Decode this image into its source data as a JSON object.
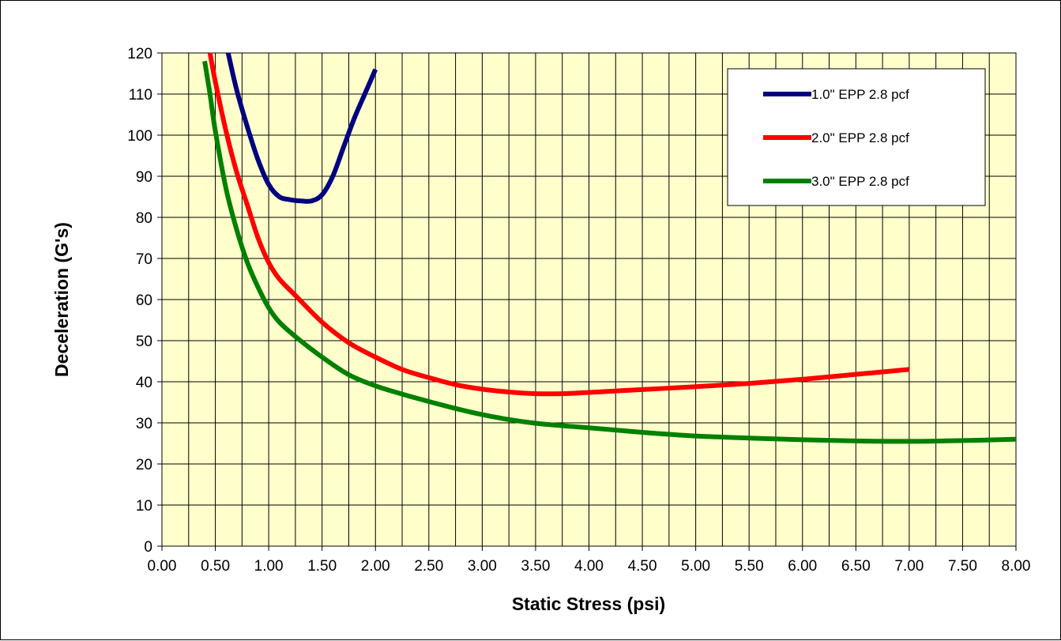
{
  "chart_data": {
    "type": "line",
    "title": "",
    "xlabel": "Static Stress (psi)",
    "ylabel": "Deceleration (G's)",
    "xlim": [
      0,
      8
    ],
    "ylim": [
      0,
      120
    ],
    "x_ticks": [
      "0.00",
      "0.50",
      "1.00",
      "1.50",
      "2.00",
      "2.50",
      "3.00",
      "3.50",
      "4.00",
      "4.50",
      "5.00",
      "5.50",
      "6.00",
      "6.50",
      "7.00",
      "7.50",
      "8.00"
    ],
    "y_ticks": [
      "0",
      "10",
      "20",
      "30",
      "40",
      "50",
      "60",
      "70",
      "80",
      "90",
      "100",
      "110",
      "120"
    ],
    "x_tick_values": [
      0,
      0.5,
      1,
      1.5,
      2,
      2.5,
      3,
      3.5,
      4,
      4.5,
      5,
      5.5,
      6,
      6.5,
      7,
      7.5,
      8
    ],
    "y_tick_values": [
      0,
      10,
      20,
      30,
      40,
      50,
      60,
      70,
      80,
      90,
      100,
      110,
      120
    ],
    "x_minor_step": 0.25,
    "grid": true,
    "legend_position": "top-right",
    "plot_background": "#FFFFCC",
    "series": [
      {
        "name": "1.0\" EPP 2.8 pcf",
        "color": "#000080",
        "x": [
          0.62,
          0.7,
          0.8,
          0.9,
          1.0,
          1.1,
          1.2,
          1.3,
          1.4,
          1.5,
          1.6,
          1.7,
          1.8,
          1.9,
          2.0
        ],
        "y": [
          120,
          111,
          102,
          94,
          88,
          85,
          84.3,
          84,
          84,
          85.5,
          90,
          97,
          104,
          110,
          116
        ]
      },
      {
        "name": "2.0\" EPP 2.8 pcf",
        "color": "#FF0000",
        "x": [
          0.45,
          0.5,
          0.6,
          0.7,
          0.8,
          0.9,
          1.0,
          1.1,
          1.25,
          1.5,
          1.75,
          2.0,
          2.25,
          2.5,
          2.75,
          3.0,
          3.25,
          3.5,
          3.75,
          4.0,
          4.5,
          5.0,
          5.5,
          6.0,
          6.5,
          7.0
        ],
        "y": [
          120,
          113,
          101,
          91,
          83,
          75,
          69,
          65,
          61,
          54.5,
          49.5,
          46,
          43,
          41,
          39.3,
          38.2,
          37.5,
          37.1,
          37.1,
          37.4,
          38.1,
          38.8,
          39.6,
          40.6,
          41.8,
          43
        ]
      },
      {
        "name": "3.0\" EPP 2.8 pcf",
        "color": "#008000",
        "x": [
          0.4,
          0.45,
          0.5,
          0.6,
          0.7,
          0.8,
          0.9,
          1.0,
          1.1,
          1.25,
          1.5,
          1.75,
          2.0,
          2.25,
          2.5,
          2.75,
          3.0,
          3.25,
          3.5,
          3.75,
          4.0,
          4.5,
          5.0,
          5.5,
          6.0,
          6.5,
          7.0,
          7.5,
          8.0
        ],
        "y": [
          118,
          110,
          101,
          87,
          77,
          69,
          63,
          58,
          54.5,
          51,
          46,
          41.7,
          39,
          37,
          35.2,
          33.5,
          32,
          30.8,
          29.9,
          29.3,
          28.8,
          27.7,
          26.8,
          26.3,
          25.9,
          25.6,
          25.5,
          25.7,
          26
        ]
      }
    ]
  }
}
